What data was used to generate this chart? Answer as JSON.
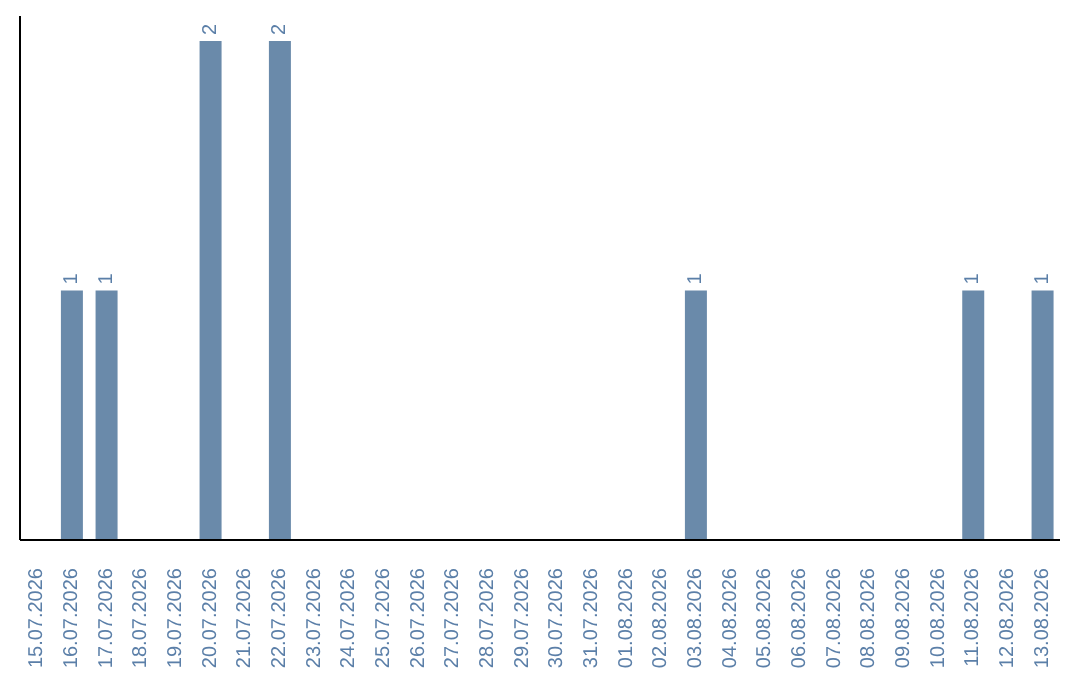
{
  "chart_data": {
    "type": "bar",
    "categories": [
      "15.07.2026",
      "16.07.2026",
      "17.07.2026",
      "18.07.2026",
      "19.07.2026",
      "20.07.2026",
      "21.07.2026",
      "22.07.2026",
      "23.07.2026",
      "24.07.2026",
      "25.07.2026",
      "26.07.2026",
      "27.07.2026",
      "28.07.2026",
      "29.07.2026",
      "30.07.2026",
      "31.07.2026",
      "01.08.2026",
      "02.08.2026",
      "03.08.2026",
      "04.08.2026",
      "05.08.2026",
      "06.08.2026",
      "07.08.2026",
      "08.08.2026",
      "09.08.2026",
      "10.08.2026",
      "11.08.2026",
      "12.08.2026",
      "13.08.2026"
    ],
    "values": [
      0,
      1,
      1,
      0,
      0,
      2,
      0,
      2,
      0,
      0,
      0,
      0,
      0,
      0,
      0,
      0,
      0,
      0,
      0,
      1,
      0,
      0,
      0,
      0,
      0,
      0,
      0,
      1,
      0,
      1
    ],
    "value_labels": [
      null,
      "1",
      "1",
      null,
      null,
      "2",
      null,
      "2",
      null,
      null,
      null,
      null,
      null,
      null,
      null,
      null,
      null,
      null,
      null,
      "1",
      null,
      null,
      null,
      null,
      null,
      null,
      null,
      "1",
      null,
      "1"
    ],
    "color": "#6a8aaa",
    "grid": false,
    "legend": false
  }
}
